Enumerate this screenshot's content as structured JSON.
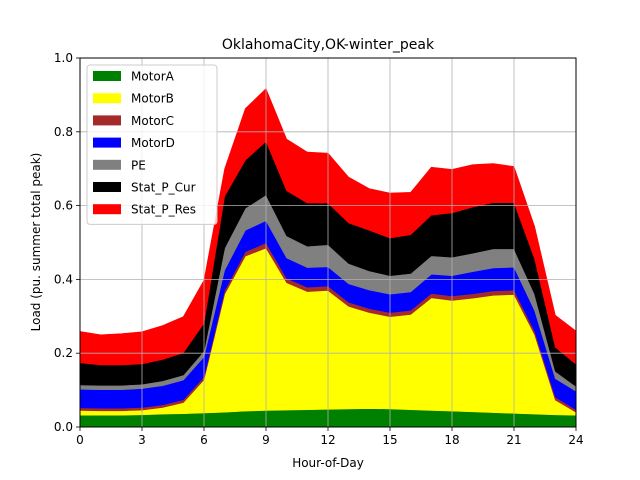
{
  "chart_data": {
    "type": "area",
    "stacked": true,
    "title": "OklahomaCity,OK-winter_peak",
    "xlabel": "Hour-of-Day",
    "ylabel": "Load (pu. summer total peak)",
    "xlim": [
      0,
      24
    ],
    "ylim": [
      0,
      1.0
    ],
    "xticks": [
      "0",
      "3",
      "6",
      "9",
      "12",
      "15",
      "18",
      "21",
      "24"
    ],
    "yticks": [
      "0.0",
      "0.2",
      "0.4",
      "0.6",
      "0.8",
      "1.0"
    ],
    "grid": true,
    "legend_position": "upper-left",
    "x": [
      0,
      1,
      2,
      3,
      4,
      5,
      6,
      7,
      8,
      9,
      10,
      11,
      12,
      13,
      14,
      15,
      16,
      17,
      18,
      19,
      20,
      21,
      22,
      23,
      24
    ],
    "series": [
      {
        "name": "MotorA",
        "color": "#008000",
        "values": [
          0.032,
          0.032,
          0.032,
          0.033,
          0.035,
          0.036,
          0.038,
          0.04,
          0.043,
          0.045,
          0.046,
          0.047,
          0.048,
          0.049,
          0.05,
          0.049,
          0.047,
          0.045,
          0.043,
          0.041,
          0.039,
          0.037,
          0.035,
          0.033,
          0.032
        ]
      },
      {
        "name": "MotorB",
        "color": "#ffff00",
        "values": [
          0.013,
          0.012,
          0.012,
          0.013,
          0.018,
          0.03,
          0.09,
          0.32,
          0.42,
          0.44,
          0.345,
          0.32,
          0.322,
          0.278,
          0.26,
          0.25,
          0.258,
          0.305,
          0.3,
          0.308,
          0.318,
          0.322,
          0.215,
          0.04,
          0.008
        ]
      },
      {
        "name": "MotorC",
        "color": "#a52a2a",
        "values": [
          0.007,
          0.007,
          0.007,
          0.007,
          0.007,
          0.008,
          0.008,
          0.01,
          0.012,
          0.014,
          0.012,
          0.012,
          0.012,
          0.011,
          0.011,
          0.011,
          0.011,
          0.012,
          0.012,
          0.012,
          0.012,
          0.012,
          0.01,
          0.008,
          0.007
        ]
      },
      {
        "name": "MotorD",
        "color": "#0000ff",
        "values": [
          0.05,
          0.05,
          0.05,
          0.051,
          0.052,
          0.053,
          0.054,
          0.055,
          0.058,
          0.06,
          0.055,
          0.053,
          0.052,
          0.05,
          0.05,
          0.05,
          0.05,
          0.052,
          0.055,
          0.06,
          0.062,
          0.062,
          0.055,
          0.05,
          0.05
        ]
      },
      {
        "name": "PE",
        "color": "#808080",
        "values": [
          0.012,
          0.012,
          0.012,
          0.012,
          0.013,
          0.014,
          0.016,
          0.06,
          0.06,
          0.07,
          0.06,
          0.058,
          0.06,
          0.055,
          0.052,
          0.05,
          0.05,
          0.05,
          0.05,
          0.05,
          0.052,
          0.05,
          0.045,
          0.02,
          0.013
        ]
      },
      {
        "name": "Stat_P_Cur",
        "color": "#000000",
        "values": [
          0.06,
          0.055,
          0.055,
          0.055,
          0.058,
          0.06,
          0.075,
          0.14,
          0.13,
          0.145,
          0.122,
          0.117,
          0.113,
          0.11,
          0.11,
          0.102,
          0.105,
          0.11,
          0.12,
          0.125,
          0.125,
          0.125,
          0.095,
          0.065,
          0.06
        ]
      },
      {
        "name": "Stat_P_Res",
        "color": "#ff0000",
        "values": [
          0.085,
          0.082,
          0.085,
          0.087,
          0.092,
          0.098,
          0.117,
          0.075,
          0.14,
          0.143,
          0.14,
          0.138,
          0.135,
          0.124,
          0.113,
          0.122,
          0.115,
          0.13,
          0.118,
          0.115,
          0.106,
          0.098,
          0.088,
          0.087,
          0.09
        ]
      }
    ]
  }
}
